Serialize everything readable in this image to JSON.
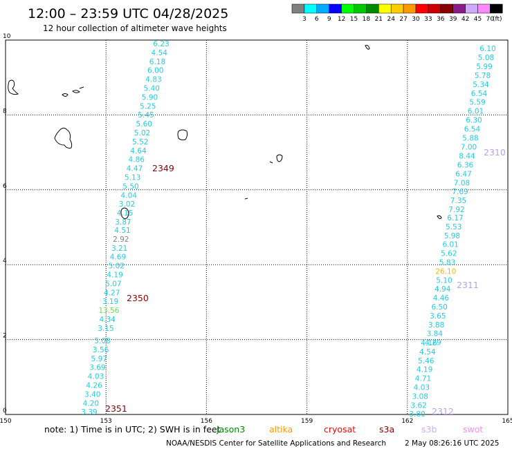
{
  "header": {
    "title": "12:00 – 23:59 UTC 04/28/2025",
    "subtitle": "12 hour collection of altimeter wave heights"
  },
  "legend": {
    "unit": "(ft)",
    "bins": [
      {
        "label": "3",
        "color": "#808080"
      },
      {
        "label": "6",
        "color": "#00ffff"
      },
      {
        "label": "9",
        "color": "#00aaff"
      },
      {
        "label": "12",
        "color": "#0000ff"
      },
      {
        "label": "15",
        "color": "#00ff00"
      },
      {
        "label": "18",
        "color": "#00c800"
      },
      {
        "label": "21",
        "color": "#008800"
      },
      {
        "label": "24",
        "color": "#ffff00"
      },
      {
        "label": "27",
        "color": "#ffcc00"
      },
      {
        "label": "30",
        "color": "#ff9900"
      },
      {
        "label": "33",
        "color": "#ff0000"
      },
      {
        "label": "36",
        "color": "#cc0000"
      },
      {
        "label": "39",
        "color": "#880000"
      },
      {
        "label": "42",
        "color": "#8b1a8b"
      },
      {
        "label": "45",
        "color": "#ccaaff"
      },
      {
        "label": "70",
        "color": "#ff88ff"
      },
      {
        "label": "",
        "color": "#000000"
      }
    ]
  },
  "axes": {
    "x_ticks": [
      "150",
      "153",
      "156",
      "159",
      "162",
      "165"
    ],
    "y_ticks": [
      "0",
      "2",
      "4",
      "6",
      "8",
      "10"
    ],
    "xlim": [
      150,
      165
    ],
    "ylim": [
      0,
      10
    ]
  },
  "tracks": [
    {
      "pass_label": "2349",
      "pass_color": "#8b0000",
      "points": [
        {
          "v": "6.23",
          "c": "#22cbe0"
        },
        {
          "v": "4.54",
          "c": "#22cbe0"
        },
        {
          "v": "6.18",
          "c": "#22cbe0"
        },
        {
          "v": "6.00",
          "c": "#22cbe0"
        },
        {
          "v": "4.83",
          "c": "#22cbe0"
        },
        {
          "v": "5.40",
          "c": "#22cbe0"
        },
        {
          "v": "5.90",
          "c": "#22cbe0"
        },
        {
          "v": "5.25",
          "c": "#22cbe0"
        },
        {
          "v": "5.45",
          "c": "#22cbe0"
        },
        {
          "v": "5.60",
          "c": "#22cbe0"
        },
        {
          "v": "5.02",
          "c": "#22cbe0"
        },
        {
          "v": "5.52",
          "c": "#22cbe0"
        },
        {
          "v": "4.64",
          "c": "#22cbe0"
        },
        {
          "v": "4.86",
          "c": "#22cbe0"
        },
        {
          "v": "4.47",
          "c": "#22cbe0"
        },
        {
          "v": "5.13",
          "c": "#22cbe0"
        },
        {
          "v": "5.50",
          "c": "#22cbe0"
        },
        {
          "v": "4.04",
          "c": "#22cbe0"
        },
        {
          "v": "3.02",
          "c": "#22cbe0"
        },
        {
          "v": "4.15",
          "c": "#22cbe0"
        },
        {
          "v": "3.87",
          "c": "#22cbe0"
        }
      ]
    },
    {
      "pass_label": "2350",
      "pass_color": "#8b0000",
      "points": [
        {
          "v": "4.51",
          "c": "#22cbe0"
        },
        {
          "v": "2.92",
          "c": "#808080"
        },
        {
          "v": "3.21",
          "c": "#22cbe0"
        },
        {
          "v": "4.69",
          "c": "#22cbe0"
        },
        {
          "v": "5.02",
          "c": "#22cbe0"
        },
        {
          "v": "4.19",
          "c": "#22cbe0"
        },
        {
          "v": "5.07",
          "c": "#22cbe0"
        },
        {
          "v": "4.27",
          "c": "#22cbe0"
        },
        {
          "v": "3.19",
          "c": "#22cbe0"
        },
        {
          "v": "13.56",
          "c": "#66dd55"
        },
        {
          "v": "4.34",
          "c": "#22cbe0"
        },
        {
          "v": "3.15",
          "c": "#22cbe0"
        }
      ]
    },
    {
      "pass_label": "2351",
      "pass_color": "#8b0000",
      "points": [
        {
          "v": "5.08",
          "c": "#22cbe0"
        },
        {
          "v": "3.56",
          "c": "#22cbe0"
        },
        {
          "v": "5.97",
          "c": "#22cbe0"
        },
        {
          "v": "3.69",
          "c": "#22cbe0"
        },
        {
          "v": "4.03",
          "c": "#22cbe0"
        },
        {
          "v": "4.26",
          "c": "#22cbe0"
        },
        {
          "v": "3.40",
          "c": "#22cbe0"
        },
        {
          "v": "4.20",
          "c": "#22cbe0"
        },
        {
          "v": "3.39",
          "c": "#22cbe0"
        }
      ]
    },
    {
      "pass_label": "2310",
      "pass_color": "#b9a0ee",
      "points": [
        {
          "v": "6.10",
          "c": "#22cbe0"
        },
        {
          "v": "5.08",
          "c": "#22cbe0"
        },
        {
          "v": "5.99",
          "c": "#22cbe0"
        },
        {
          "v": "5.78",
          "c": "#22cbe0"
        },
        {
          "v": "5.34",
          "c": "#22cbe0"
        },
        {
          "v": "6.54",
          "c": "#22cbe0"
        },
        {
          "v": "5.59",
          "c": "#22cbe0"
        },
        {
          "v": "6.01",
          "c": "#22cbe0"
        },
        {
          "v": "6.30",
          "c": "#22cbe0"
        },
        {
          "v": "6.54",
          "c": "#22cbe0"
        },
        {
          "v": "5.88",
          "c": "#22cbe0"
        },
        {
          "v": "7.00",
          "c": "#22cbe0"
        },
        {
          "v": "8.44",
          "c": "#22cbe0"
        },
        {
          "v": "6.36",
          "c": "#22cbe0"
        },
        {
          "v": "6.47",
          "c": "#22cbe0"
        },
        {
          "v": "7.08",
          "c": "#22cbe0"
        },
        {
          "v": "7.69",
          "c": "#22cbe0"
        },
        {
          "v": "7.35",
          "c": "#22cbe0"
        },
        {
          "v": "7.92",
          "c": "#22cbe0"
        }
      ]
    },
    {
      "pass_label": "2311",
      "pass_color": "#b9a0ee",
      "points": [
        {
          "v": "6.17",
          "c": "#22cbe0"
        },
        {
          "v": "5.53",
          "c": "#22cbe0"
        },
        {
          "v": "5.98",
          "c": "#22cbe0"
        },
        {
          "v": "6.01",
          "c": "#22cbe0"
        },
        {
          "v": "5.62",
          "c": "#22cbe0"
        },
        {
          "v": "5.83",
          "c": "#22cbe0"
        },
        {
          "v": "26.10",
          "c": "#f5b800"
        },
        {
          "v": "5.10",
          "c": "#22cbe0"
        },
        {
          "v": "4.94",
          "c": "#22cbe0"
        },
        {
          "v": "4.46",
          "c": "#22cbe0"
        },
        {
          "v": "6.50",
          "c": "#22cbe0"
        },
        {
          "v": "3.65",
          "c": "#22cbe0"
        },
        {
          "v": "3.88",
          "c": "#22cbe0"
        },
        {
          "v": "3.84",
          "c": "#22cbe0"
        },
        {
          "v": "4.29",
          "c": "#22cbe0"
        }
      ]
    },
    {
      "pass_label": "2312",
      "pass_color": "#b9a0ee",
      "points": [
        {
          "v": "4.16",
          "c": "#22cbe0"
        },
        {
          "v": "4.54",
          "c": "#22cbe0"
        },
        {
          "v": "5.46",
          "c": "#22cbe0"
        },
        {
          "v": "4.19",
          "c": "#22cbe0"
        },
        {
          "v": "4.71",
          "c": "#22cbe0"
        },
        {
          "v": "4.03",
          "c": "#22cbe0"
        },
        {
          "v": "3.08",
          "c": "#22cbe0"
        },
        {
          "v": "3.62",
          "c": "#22cbe0"
        },
        {
          "v": "3.80",
          "c": "#22cbe0"
        }
      ]
    }
  ],
  "footer": {
    "note": "note: 1) Time is in UTC; 2) SWH is in feet",
    "satellites": [
      {
        "name": "jason3",
        "color": "#008800"
      },
      {
        "name": "altika",
        "color": "#ff9900"
      },
      {
        "name": "cryosat",
        "color": "#ff0000"
      },
      {
        "name": "s3a",
        "color": "#8b0000"
      },
      {
        "name": "s3b",
        "color": "#ccaaff"
      },
      {
        "name": "swot",
        "color": "#ff88ff"
      }
    ],
    "credit": "NOAA/NESDIS Center for Satellite Applications and Research",
    "timestamp": "2 May 08:26:16 UTC 2025"
  }
}
